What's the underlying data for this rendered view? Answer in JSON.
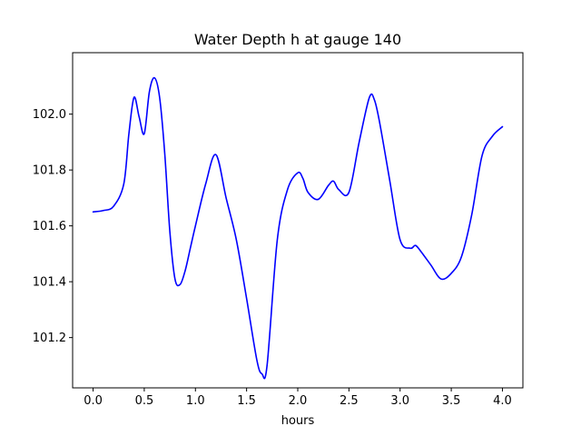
{
  "chart_data": {
    "type": "line",
    "title": "Water Depth h at gauge 140",
    "xlabel": "hours",
    "ylabel": "",
    "xlim": [
      -0.2,
      4.2
    ],
    "ylim": [
      101.02,
      102.22
    ],
    "xticks": [
      0.0,
      0.5,
      1.0,
      1.5,
      2.0,
      2.5,
      3.0,
      3.5,
      4.0
    ],
    "xtick_labels": [
      "0.0",
      "0.5",
      "1.0",
      "1.5",
      "2.0",
      "2.5",
      "3.0",
      "3.5",
      "4.0"
    ],
    "yticks": [
      101.2,
      101.4,
      101.6,
      101.8,
      102.0
    ],
    "ytick_labels": [
      "101.2",
      "101.4",
      "101.6",
      "101.8",
      "102.0"
    ],
    "grid": false,
    "legend": "none",
    "series": [
      {
        "color": "#0000ff",
        "x": [
          0.0,
          0.1,
          0.2,
          0.3,
          0.35,
          0.4,
          0.45,
          0.5,
          0.55,
          0.6,
          0.65,
          0.7,
          0.75,
          0.8,
          0.85,
          0.9,
          0.95,
          1.0,
          1.1,
          1.2,
          1.3,
          1.4,
          1.5,
          1.6,
          1.65,
          1.7,
          1.8,
          1.9,
          2.0,
          2.05,
          2.1,
          2.2,
          2.3,
          2.35,
          2.4,
          2.5,
          2.6,
          2.7,
          2.75,
          2.8,
          2.9,
          3.0,
          3.1,
          3.15,
          3.2,
          3.3,
          3.4,
          3.5,
          3.6,
          3.7,
          3.8,
          3.9,
          4.0
        ],
        "y": [
          101.65,
          101.655,
          101.67,
          101.75,
          101.93,
          102.06,
          101.99,
          101.93,
          102.08,
          102.13,
          102.06,
          101.86,
          101.58,
          101.41,
          101.39,
          101.44,
          101.52,
          101.6,
          101.75,
          101.855,
          101.7,
          101.55,
          101.34,
          101.12,
          101.07,
          101.1,
          101.55,
          101.73,
          101.79,
          101.77,
          101.72,
          101.695,
          101.745,
          101.76,
          101.73,
          101.72,
          101.9,
          102.06,
          102.05,
          101.97,
          101.76,
          101.55,
          101.52,
          101.53,
          101.51,
          101.46,
          101.41,
          101.43,
          101.49,
          101.64,
          101.85,
          101.92,
          101.955
        ]
      }
    ]
  }
}
